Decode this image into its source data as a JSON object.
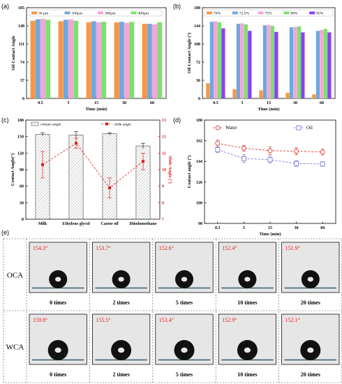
{
  "panels": {
    "a": {
      "label": "(a)"
    },
    "b": {
      "label": "(b)"
    },
    "c": {
      "label": "(c)"
    },
    "d": {
      "label": "(d)"
    },
    "e": {
      "label": "(e)"
    }
  },
  "colors": {
    "orange": "#f79646",
    "blue": "#6fa8dc",
    "pink": "#f2a7d8",
    "green": "#7ee06f",
    "purple": "#8a3ffc",
    "red": "#e0211b",
    "bluelight": "#6b6bd8"
  },
  "chart_data": [
    {
      "id": "a",
      "type": "bar",
      "categories": [
        "0.5",
        "5",
        "15",
        "30",
        "60"
      ],
      "series": [
        {
          "name": "50 μm",
          "values": [
            154,
            153,
            151,
            151,
            148
          ]
        },
        {
          "name": "100μm",
          "values": [
            157,
            156,
            153,
            152,
            148
          ]
        },
        {
          "name": "300μm",
          "values": [
            158,
            157,
            151,
            150,
            147
          ]
        },
        {
          "name": "400μm",
          "values": [
            156,
            154,
            152,
            152,
            151
          ]
        }
      ],
      "xlabel": "Time (min)",
      "ylabel": "Oil Contact Angle",
      "ylim": [
        0,
        180
      ],
      "yticks": [
        "0",
        "37",
        "74",
        "111",
        "148",
        "185"
      ]
    },
    {
      "id": "b",
      "type": "bar",
      "categories": [
        "0.5",
        "5",
        "15",
        "30",
        "60"
      ],
      "series": [
        {
          "name": "70%",
          "values": [
            30,
            18,
            16,
            11,
            8
          ]
        },
        {
          "name": "72.5%",
          "values": [
            152,
            148,
            145,
            141,
            134
          ]
        },
        {
          "name": "75%",
          "values": [
            153,
            149,
            146,
            142,
            136
          ]
        },
        {
          "name": "80%",
          "values": [
            151,
            147,
            144,
            143,
            138
          ]
        },
        {
          "name": "85%",
          "values": [
            139,
            134,
            132,
            131,
            131
          ]
        }
      ],
      "xlabel": "Time (min)",
      "ylabel": "Oil Contact Angle (°)",
      "ylim": [
        0,
        180
      ],
      "yticks": [
        "0",
        "36",
        "72",
        "108",
        "144",
        "180"
      ]
    },
    {
      "id": "c",
      "type": "bar",
      "categories": [
        "Milk",
        "Ethylene glycol",
        "Castor oil",
        "Diiodomethane"
      ],
      "series": [
        {
          "name": "contact angle",
          "values": [
            154,
            153,
            155,
            133
          ],
          "errors": [
            3,
            6,
            2,
            5
          ]
        },
        {
          "name": "slide angle",
          "values": [
            10.3,
            11.6,
            8.9,
            10.5
          ],
          "errors": [
            0.8,
            0.3,
            0.6,
            0.5
          ]
        }
      ],
      "ylabel": "Contact Angle(°)",
      "y2label": "Slide Angle (°)",
      "ylim": [
        0,
        180
      ],
      "y2lim": [
        7,
        13
      ],
      "yticks": [
        "0",
        "30",
        "60",
        "90",
        "120",
        "150",
        "180"
      ],
      "y2ticks": [
        "7",
        "8",
        "9",
        "10",
        "11",
        "12",
        "13"
      ]
    },
    {
      "id": "d",
      "type": "line",
      "categories": [
        "0.5",
        "5",
        "15",
        "30",
        "60"
      ],
      "series": [
        {
          "name": "Water",
          "values": [
            159.8,
            155.5,
            153.4,
            152.9,
            152.1
          ],
          "errors": [
            3,
            2.5,
            3.5,
            3,
            2.5
          ]
        },
        {
          "name": "Oil",
          "values": [
            154.3,
            146.5,
            145.5,
            142.2,
            141.7
          ],
          "errors": [
            2.5,
            3.5,
            3,
            2.5,
            2
          ]
        }
      ],
      "xlabel": "Time (min)",
      "ylabel": "Contact angle (°)",
      "ylim": [
        90,
        180
      ],
      "yticks": [
        "90",
        "108",
        "126",
        "144",
        "162",
        "180"
      ]
    }
  ],
  "panel_e": {
    "rows": [
      {
        "label": "OCA",
        "angles": [
          "154.3°",
          "153.7°",
          "152.6°",
          "152.4°",
          "151.9°"
        ]
      },
      {
        "label": "WCA",
        "angles": [
          "159.8°",
          "155.5°",
          "153.4°",
          "152.9°",
          "152.1°"
        ]
      }
    ],
    "times": [
      "0 times",
      "2 times",
      "5 times",
      "10 times",
      "20 times"
    ]
  }
}
